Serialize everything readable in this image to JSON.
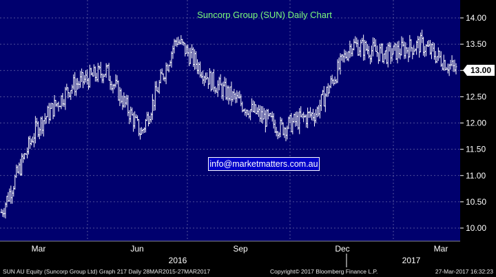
{
  "chart_data": {
    "type": "ohlc",
    "title": "Suncorp Group (SUN) Daily Chart",
    "watermark": "info@marketmatters.com.au",
    "last_price_label": "13.00",
    "y_ticks": [
      "14.00",
      "13.50",
      "13.00",
      "12.50",
      "12.00",
      "11.50",
      "11.00",
      "10.50",
      "10.00"
    ],
    "ylim": [
      9.8,
      14.2
    ],
    "month_labels": [
      "Mar",
      "Jun",
      "Sep",
      "Dec",
      "Mar"
    ],
    "year_labels": [
      "2016",
      "2017"
    ],
    "x": [
      "2016-02",
      "2016-03",
      "2016-04",
      "2016-05",
      "2016-06",
      "2016-07",
      "2016-08",
      "2016-09",
      "2016-10",
      "2016-11",
      "2016-12",
      "2017-01",
      "2017-02",
      "2017-03"
    ],
    "close": [
      10.3,
      11.9,
      12.7,
      13.0,
      11.8,
      13.6,
      12.8,
      12.3,
      11.9,
      12.2,
      13.5,
      13.3,
      13.5,
      13.0
    ],
    "colors": {
      "background": "#00006e",
      "bars": "#ffffff",
      "title": "#7CFC7C",
      "grid": "#6a6aa8"
    },
    "grid": true
  },
  "footer": {
    "left": "SUN AU Equity (Suncorp Group Ltd) Graph 217  Daily 28MAR2015-27MAR2017",
    "center": "Copyright© 2017 Bloomberg Finance L.P.",
    "right": "27-Mar-2017 16:32:23"
  }
}
